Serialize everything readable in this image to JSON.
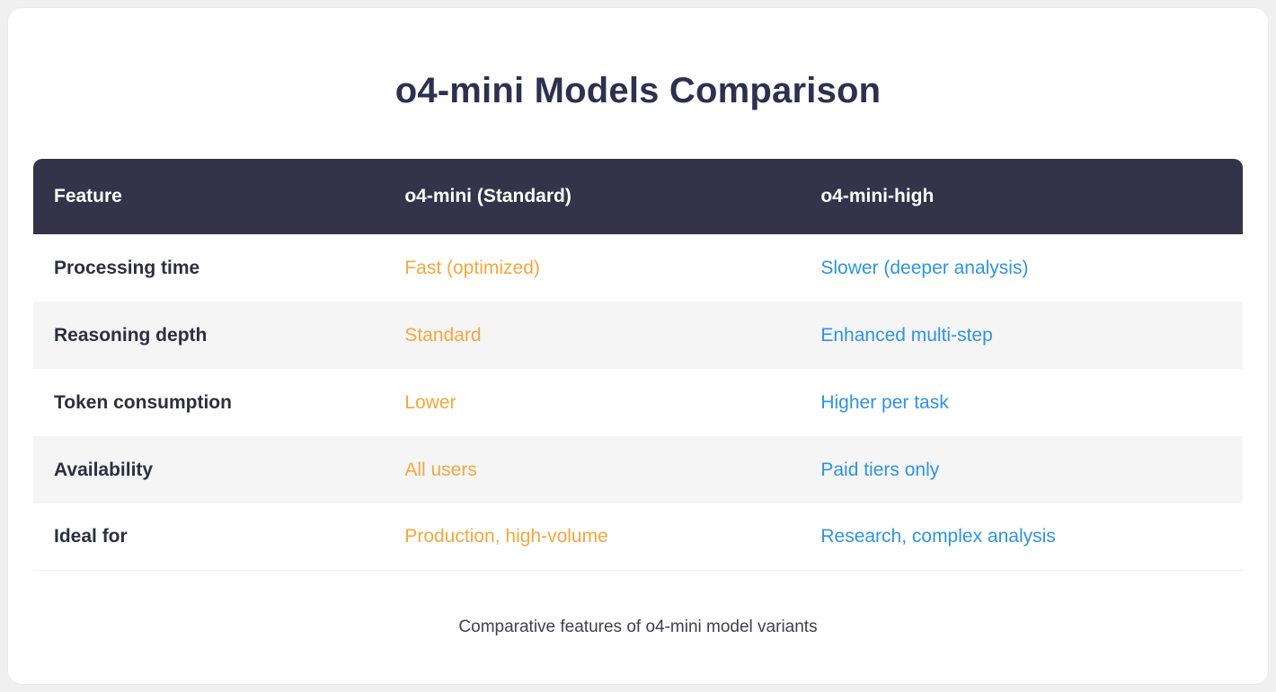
{
  "page": {
    "title": "o4-mini Models Comparison",
    "caption": "Comparative features of o4-mini model variants"
  },
  "table": {
    "columns": [
      "Feature",
      "o4-mini (Standard)",
      "o4-mini-high"
    ],
    "rows": [
      {
        "feature": "Processing time",
        "standard": "Fast (optimized)",
        "high": "Slower (deeper analysis)"
      },
      {
        "feature": "Reasoning depth",
        "standard": "Standard",
        "high": "Enhanced multi-step"
      },
      {
        "feature": "Token consumption",
        "standard": "Lower",
        "high": "Higher per task"
      },
      {
        "feature": "Availability",
        "standard": "All users",
        "high": "Paid tiers only"
      },
      {
        "feature": "Ideal for",
        "standard": "Production, high-volume",
        "high": "Research, complex analysis"
      }
    ]
  },
  "colors": {
    "header_bg": "#343349",
    "header_text": "#ffffff",
    "stripe_bg": "#f5f5f6",
    "standard_column_text": "#f3a73e",
    "high_column_text": "#2e94e0",
    "feature_text": "#2b3040",
    "title_text": "#2d3150",
    "page_bg": "#f0f0f1",
    "card_bg": "#ffffff"
  },
  "chart_data": {
    "type": "table",
    "title": "o4-mini Models Comparison",
    "caption": "Comparative features of o4-mini model variants",
    "columns": [
      "Feature",
      "o4-mini (Standard)",
      "o4-mini-high"
    ],
    "rows": [
      [
        "Processing time",
        "Fast (optimized)",
        "Slower (deeper analysis)"
      ],
      [
        "Reasoning depth",
        "Standard",
        "Enhanced multi-step"
      ],
      [
        "Token consumption",
        "Lower",
        "Higher per task"
      ],
      [
        "Availability",
        "All users",
        "Paid tiers only"
      ],
      [
        "Ideal for",
        "Production, high-volume",
        "Research, complex analysis"
      ]
    ],
    "layout": {
      "striped_rows": [
        2,
        4
      ],
      "header_style": "dark-navy, white bold text, rounded top corners",
      "column_value_colors": [
        "dark",
        "orange",
        "blue"
      ]
    }
  }
}
